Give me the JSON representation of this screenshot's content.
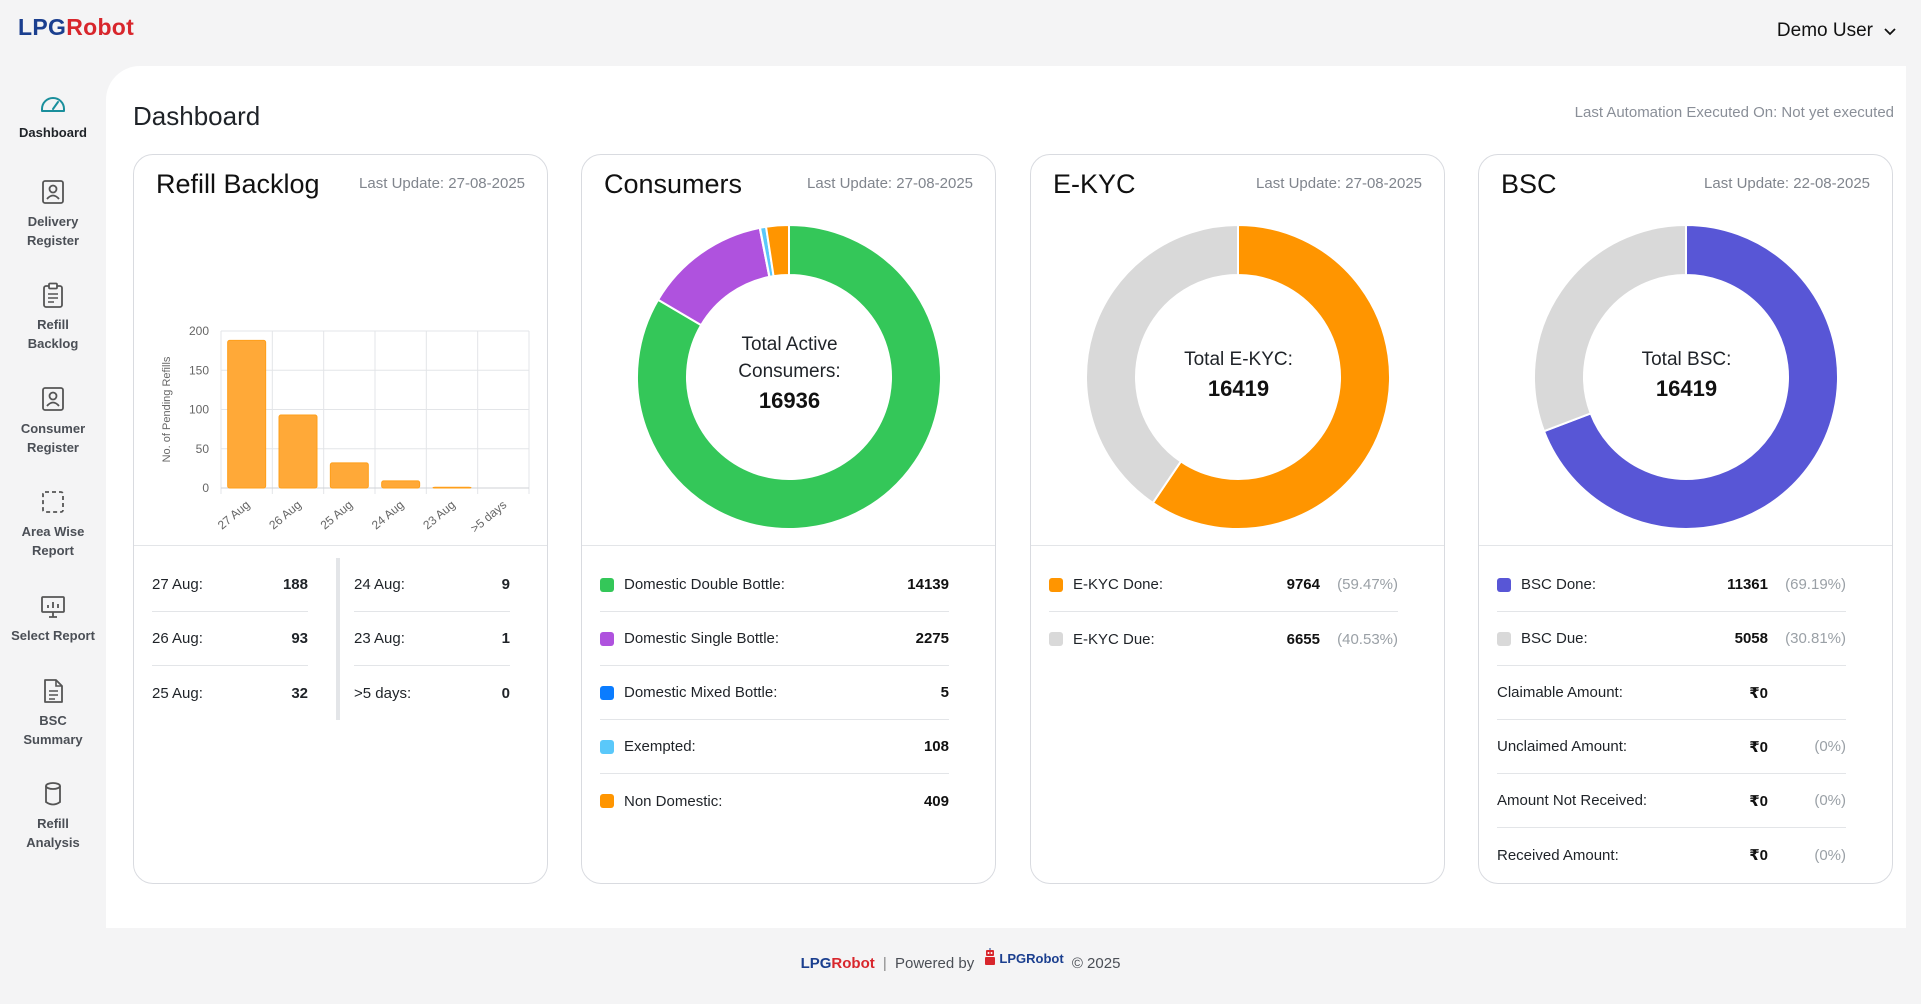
{
  "brand": {
    "lpg": "LPG",
    "robot": "Robot"
  },
  "user": {
    "name": "Demo User"
  },
  "sidebar": {
    "items": [
      {
        "label": "Dashboard",
        "icon": "gauge-icon"
      },
      {
        "label": "Delivery\nRegister",
        "icon": "user-badge-icon"
      },
      {
        "label": "Refill\nBacklog",
        "icon": "clipboard-icon"
      },
      {
        "label": "Consumer\nRegister",
        "icon": "user-badge-icon"
      },
      {
        "label": "Area Wise\nReport",
        "icon": "dashed-square-icon"
      },
      {
        "label": "Select Report",
        "icon": "presentation-icon"
      },
      {
        "label": "BSC\nSummary",
        "icon": "document-icon"
      },
      {
        "label": "Refill\nAnalysis",
        "icon": "cylinder-icon"
      }
    ]
  },
  "main": {
    "title": "Dashboard",
    "last_automation": "Last Automation Executed On: Not yet executed"
  },
  "refill_backlog": {
    "title": "Refill Backlog",
    "last_update": "Last Update: 27-08-2025",
    "rows_left": [
      {
        "label": "27 Aug:",
        "value": "188"
      },
      {
        "label": "26 Aug:",
        "value": "93"
      },
      {
        "label": "25 Aug:",
        "value": "32"
      }
    ],
    "rows_right": [
      {
        "label": "24 Aug:",
        "value": "9"
      },
      {
        "label": "23 Aug:",
        "value": "1"
      },
      {
        "label": ">5 days:",
        "value": "0"
      }
    ]
  },
  "consumers": {
    "title": "Consumers",
    "last_update": "Last Update: 27-08-2025",
    "center_label_1": "Total Active",
    "center_label_2": "Consumers:",
    "center_value": "16936",
    "rows": [
      {
        "label": "Domestic Double Bottle:",
        "value": "14139",
        "color": "#34c759"
      },
      {
        "label": "Domestic Single Bottle:",
        "value": "2275",
        "color": "#af52de"
      },
      {
        "label": "Domestic Mixed Bottle:",
        "value": "5",
        "color": "#0a7cff"
      },
      {
        "label": "Exempted:",
        "value": "108",
        "color": "#5ac8fa"
      },
      {
        "label": "Non Domestic:",
        "value": "409",
        "color": "#ff9500"
      }
    ]
  },
  "ekyc": {
    "title": "E-KYC",
    "last_update": "Last Update: 27-08-2025",
    "center_label": "Total E-KYC:",
    "center_value": "16419",
    "rows": [
      {
        "label": "E-KYC Done:",
        "value": "9764",
        "pct": "(59.47%)",
        "color": "#ff9500"
      },
      {
        "label": "E-KYC Due:",
        "value": "6655",
        "pct": "(40.53%)",
        "color": "#d9d9d9"
      }
    ]
  },
  "bsc": {
    "title": "BSC",
    "last_update": "Last Update: 22-08-2025",
    "center_label": "Total BSC:",
    "center_value": "16419",
    "rows": [
      {
        "label": "BSC Done:",
        "value": "11361",
        "pct": "(69.19%)",
        "color": "#5856d6"
      },
      {
        "label": "BSC Due:",
        "value": "5058",
        "pct": "(30.81%)",
        "color": "#d9d9d9"
      },
      {
        "label": "Claimable Amount:",
        "value": "₹0",
        "pct": ""
      },
      {
        "label": "Unclaimed Amount:",
        "value": "₹0",
        "pct": "(0%)"
      },
      {
        "label": "Amount Not Received:",
        "value": "₹0",
        "pct": "(0%)"
      },
      {
        "label": "Received Amount:",
        "value": "₹0",
        "pct": "(0%)"
      }
    ]
  },
  "footer": {
    "brand_lpg": "LPG",
    "brand_robot": "Robot",
    "separator": "|",
    "powered_by": "Powered by",
    "small_lpg": "LPG",
    "small_robot": "Robot",
    "copyright": "© 2025"
  },
  "colors": {
    "orange": "#ff9500",
    "bar": "#ffa938",
    "green": "#34c759",
    "purple": "#af52de",
    "blue": "#0a7cff",
    "lightblue": "#5ac8fa",
    "grey": "#d9d9d9",
    "indigo": "#5856d6"
  },
  "chart_data": [
    {
      "type": "bar",
      "title": "",
      "categories": [
        "27 Aug",
        "26 Aug",
        "25 Aug",
        "24 Aug",
        "23 Aug",
        ">5 days"
      ],
      "values": [
        188,
        93,
        32,
        9,
        1,
        0
      ],
      "xlabel": "",
      "ylabel": "No. of Pending Refills",
      "ylim": [
        0,
        200
      ],
      "yticks": [
        0,
        50,
        100,
        150,
        200
      ],
      "grid": true
    },
    {
      "type": "pie",
      "title": "Consumers",
      "categories": [
        "Domestic Double Bottle",
        "Domestic Single Bottle",
        "Domestic Mixed Bottle",
        "Exempted",
        "Non Domestic"
      ],
      "values": [
        14139,
        2275,
        5,
        108,
        409
      ]
    },
    {
      "type": "pie",
      "title": "E-KYC",
      "categories": [
        "E-KYC Done",
        "E-KYC Due"
      ],
      "values": [
        9764,
        6655
      ]
    },
    {
      "type": "pie",
      "title": "BSC",
      "categories": [
        "BSC Done",
        "BSC Due"
      ],
      "values": [
        11361,
        5058
      ]
    }
  ]
}
